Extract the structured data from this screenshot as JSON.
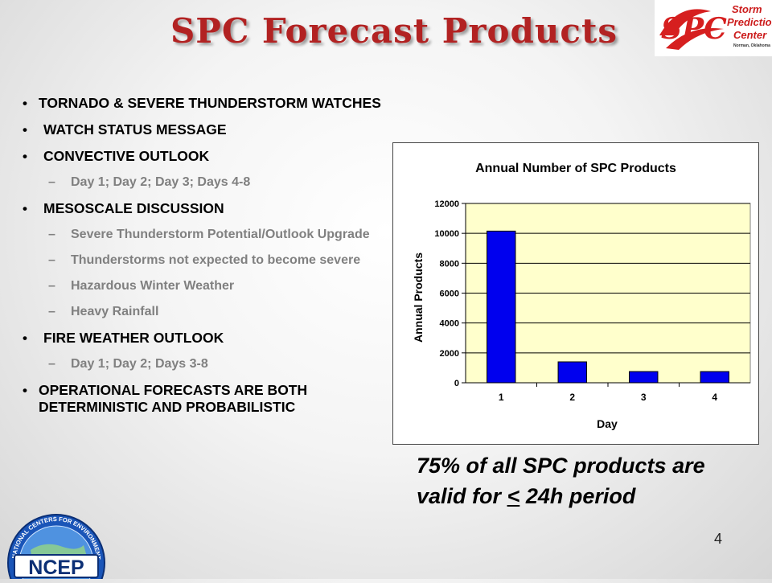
{
  "title": "SPC Forecast Products",
  "logo_spc": {
    "letters": "SPC",
    "line1": "Storm",
    "line2": "Prediction",
    "line3": "Center",
    "line4": "Norman, Oklahoma"
  },
  "bullets": [
    {
      "text": "TORNADO & SEVERE THUNDERSTORM WATCHES",
      "subs": []
    },
    {
      "text": "WATCH STATUS MESSAGE",
      "subs": []
    },
    {
      "text": "CONVECTIVE OUTLOOK",
      "subs": [
        "Day 1; Day 2; Day 3; Days 4-8"
      ]
    },
    {
      "text": "MESOSCALE DISCUSSION",
      "subs": [
        "Severe Thunderstorm Potential/Outlook Upgrade",
        "Thunderstorms not expected to become severe",
        "Hazardous Winter Weather",
        "Heavy Rainfall"
      ]
    },
    {
      "text": "FIRE WEATHER OUTLOOK",
      "subs": [
        "Day 1; Day 2; Days 3-8"
      ]
    },
    {
      "text": "OPERATIONAL FORECASTS ARE BOTH DETERMINISTIC AND PROBABILISTIC",
      "subs": []
    }
  ],
  "chart_data": {
    "type": "bar",
    "title": "Annual Number of SPC Products",
    "xlabel": "Day",
    "ylabel": "Annual Products",
    "categories": [
      "1",
      "2",
      "3",
      "4"
    ],
    "values": [
      10150,
      1400,
      750,
      750
    ],
    "ylim": [
      0,
      12000
    ],
    "yticks": [
      0,
      2000,
      4000,
      6000,
      8000,
      10000,
      12000
    ],
    "bar_color": "#0000ee",
    "plot_bg": "#ffffcc",
    "grid": true
  },
  "callout": {
    "line1": "75% of all SPC products are",
    "line2_pre": "valid for ",
    "line2_lt": "<",
    "line2_post": " 24h period"
  },
  "logo_ncep": {
    "abbr": "NCEP",
    "ring_text": "NATIONAL CENTERS FOR ENVIRONMENTAL PREDICTION"
  },
  "page_number": "4",
  "colors": {
    "title": "#b22222",
    "bullet": "#000000",
    "sub": "#808080"
  }
}
